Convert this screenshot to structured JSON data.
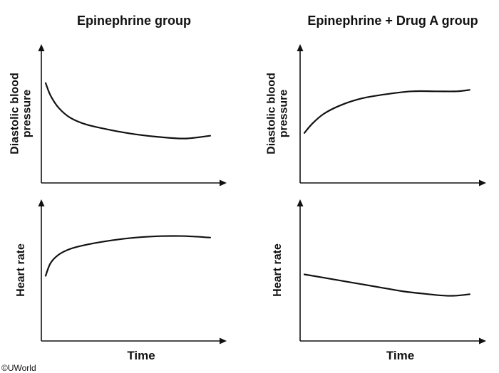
{
  "columns": [
    {
      "title": "Epinephrine group"
    },
    {
      "title": "Epinephrine + Drug A group"
    }
  ],
  "credit": "©UWorld",
  "chart_data": [
    {
      "type": "line",
      "column": 0,
      "row": 0,
      "ylabel_lines": [
        "Diastolic blood",
        "pressure"
      ],
      "xlabel": "",
      "x": [
        0,
        0.03,
        0.08,
        0.15,
        0.25,
        0.4,
        0.55,
        0.7,
        0.85,
        1.0
      ],
      "values": [
        0.72,
        0.63,
        0.54,
        0.47,
        0.42,
        0.38,
        0.35,
        0.33,
        0.32,
        0.34
      ],
      "xlim": [
        0,
        1.1
      ],
      "ylim": [
        0,
        1
      ]
    },
    {
      "type": "line",
      "column": 1,
      "row": 0,
      "ylabel_lines": [
        "Diastolic blood",
        "pressure"
      ],
      "xlabel": "",
      "x": [
        0,
        0.05,
        0.12,
        0.22,
        0.35,
        0.5,
        0.65,
        0.8,
        0.92,
        1.0
      ],
      "values": [
        0.36,
        0.43,
        0.5,
        0.56,
        0.61,
        0.64,
        0.66,
        0.66,
        0.66,
        0.67
      ],
      "xlim": [
        0,
        1.1
      ],
      "ylim": [
        0,
        1
      ]
    },
    {
      "type": "line",
      "column": 0,
      "row": 1,
      "ylabel_lines": [
        "Heart rate"
      ],
      "xlabel": "Time",
      "x": [
        0,
        0.03,
        0.08,
        0.15,
        0.25,
        0.4,
        0.55,
        0.7,
        0.85,
        1.0
      ],
      "values": [
        0.46,
        0.55,
        0.61,
        0.65,
        0.68,
        0.71,
        0.73,
        0.74,
        0.74,
        0.73
      ],
      "xlim": [
        0,
        1.1
      ],
      "ylim": [
        0,
        1
      ]
    },
    {
      "type": "line",
      "column": 1,
      "row": 1,
      "ylabel_lines": [
        "Heart rate"
      ],
      "xlabel": "Time",
      "x": [
        0,
        0.15,
        0.3,
        0.45,
        0.6,
        0.75,
        0.85,
        0.92,
        1.0
      ],
      "values": [
        0.47,
        0.44,
        0.41,
        0.38,
        0.35,
        0.33,
        0.32,
        0.32,
        0.33
      ],
      "xlim": [
        0,
        1.1
      ],
      "ylim": [
        0,
        1
      ]
    }
  ]
}
